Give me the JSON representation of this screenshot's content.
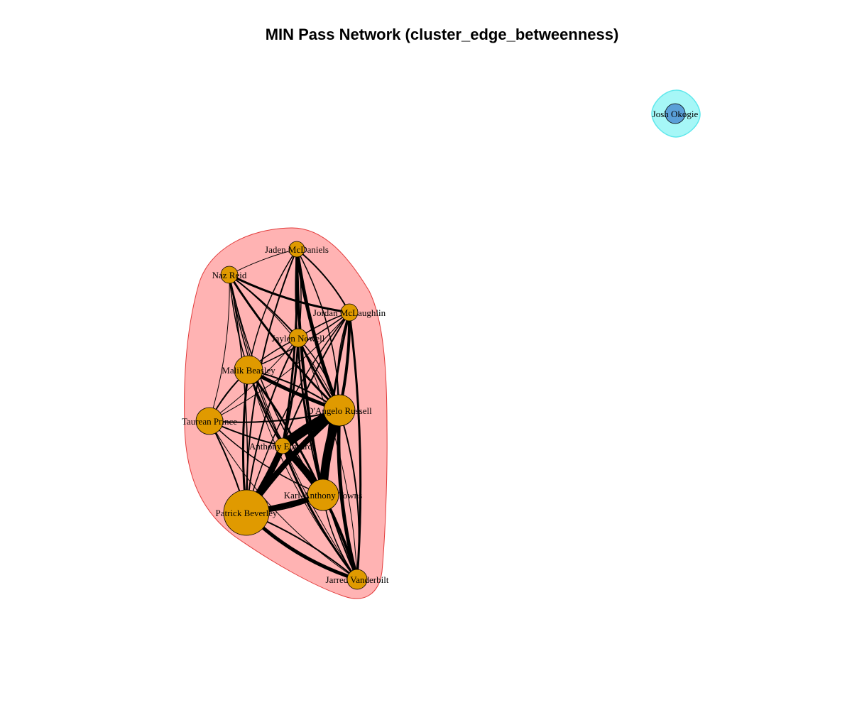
{
  "title": "MIN Pass Network (cluster_edge_betweenness)",
  "colors": {
    "cluster_main_fill": "#ffb3b3",
    "cluster_main_stroke": "#e23a3a",
    "cluster_solo_fill": "#a6f7f7",
    "cluster_solo_stroke": "#5fe8ec",
    "node_main": "#e09a00",
    "node_solo": "#5a9fd8",
    "edge": "#000000"
  },
  "nodes": [
    {
      "id": "jaden",
      "label": "Jaden McDaniels",
      "cluster": 1
    },
    {
      "id": "naz",
      "label": "Naz Reid",
      "cluster": 1
    },
    {
      "id": "jordan",
      "label": "Jordan McLaughlin",
      "cluster": 1
    },
    {
      "id": "jaylen",
      "label": "Jaylen Nowell",
      "cluster": 1
    },
    {
      "id": "malik",
      "label": "Malik Beasley",
      "cluster": 1
    },
    {
      "id": "dangelo",
      "label": "D'Angelo Russell",
      "cluster": 1
    },
    {
      "id": "taurean",
      "label": "Taurean Prince",
      "cluster": 1
    },
    {
      "id": "anthony",
      "label": "Anthony Edwards",
      "cluster": 1
    },
    {
      "id": "kat",
      "label": "Karl-Anthony Towns",
      "cluster": 1
    },
    {
      "id": "patrick",
      "label": "Patrick Beverley",
      "cluster": 1
    },
    {
      "id": "jarred",
      "label": "Jarred Vanderbilt",
      "cluster": 1
    },
    {
      "id": "josh",
      "label": "Josh Okogie",
      "cluster": 2
    }
  ]
}
